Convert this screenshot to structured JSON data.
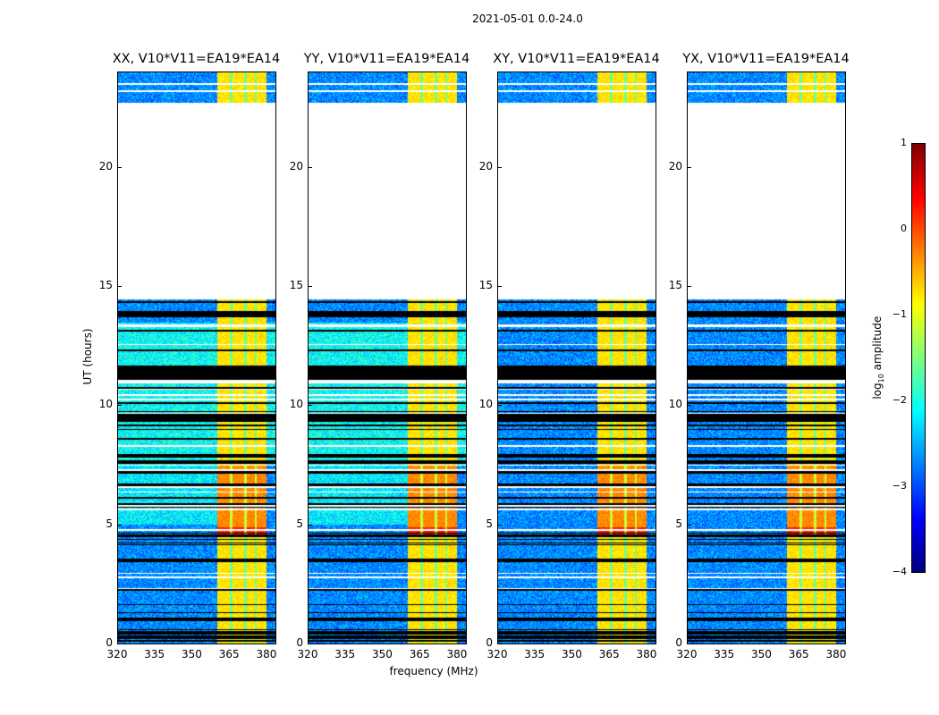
{
  "suptitle": "2021-05-01 0.0-24.0",
  "xlabel": "frequency (MHz)",
  "ylabel": "UT (hours)",
  "colorbar": {
    "label_prefix": "log",
    "label_sub": "10",
    "label_suffix": " amplitude",
    "ticks": [
      "1",
      "0",
      "−1",
      "−2",
      "−3",
      "−4"
    ],
    "range": [
      -4,
      1
    ],
    "colormap": "jet"
  },
  "chart_data": {
    "type": "heatmap",
    "panels": [
      {
        "title": "XX, V10*V11=EA19*EA14",
        "pol": "XX"
      },
      {
        "title": "YY, V10*V11=EA19*EA14",
        "pol": "YY"
      },
      {
        "title": "XY, V10*V11=EA19*EA14",
        "pol": "XY"
      },
      {
        "title": "YX, V10*V11=EA19*EA14",
        "pol": "YX"
      }
    ],
    "xlim": [
      320,
      383.6
    ],
    "ylim": [
      0,
      24
    ],
    "xticks": [
      "320",
      "335",
      "350",
      "365",
      "380"
    ],
    "yticks": [
      "0",
      "5",
      "10",
      "15",
      "20"
    ],
    "missing_time_range": [
      14.47,
      22.7
    ],
    "bright_band_MHz": [
      360,
      379.7
    ],
    "band_gaps_MHz": [
      365.7,
      371.4,
      375.5
    ],
    "flagged_hours": [
      [
        0.4,
        0.55
      ],
      [
        0.95,
        1.05
      ],
      [
        3.45,
        3.6
      ],
      [
        4.5,
        4.6
      ],
      [
        7.55,
        7.7
      ],
      [
        9.3,
        9.65
      ],
      [
        11.1,
        11.7
      ],
      [
        13.3,
        13.4
      ]
    ],
    "value_range_log10": [
      -4,
      1
    ]
  }
}
